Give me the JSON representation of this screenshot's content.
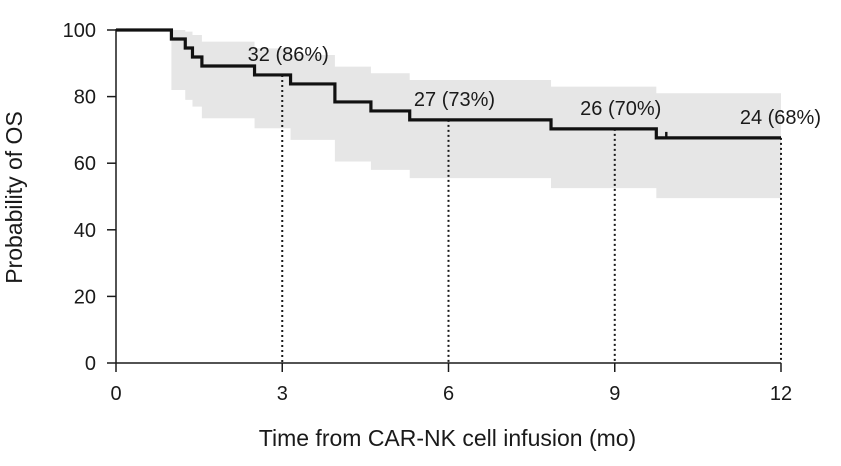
{
  "chart_data": {
    "type": "line",
    "title": "",
    "xlabel": "Time from CAR-NK cell infusion (mo)",
    "ylabel": "Probability of OS",
    "xlim": [
      0,
      12
    ],
    "ylim": [
      0,
      100
    ],
    "xticks": [
      0,
      3,
      6,
      9,
      12
    ],
    "yticks": [
      0,
      20,
      40,
      60,
      80,
      100
    ],
    "grid": false,
    "legend": "none",
    "survival": {
      "x": [
        0,
        1.0,
        1.25,
        1.38,
        1.55,
        2.5,
        3.15,
        3.95,
        4.6,
        5.3,
        7.85,
        9.75,
        12
      ],
      "y": [
        100,
        97.3,
        94.6,
        91.9,
        89.2,
        86.5,
        83.8,
        78.4,
        75.7,
        73.0,
        70.3,
        67.6,
        67.6
      ],
      "color": "#111111"
    },
    "ci_band": {
      "x": [
        0,
        1.0,
        1.25,
        1.38,
        1.55,
        2.5,
        3.15,
        3.95,
        4.6,
        5.3,
        7.85,
        9.75,
        12
      ],
      "upper": [
        100,
        100,
        99.5,
        98.5,
        96.5,
        94.5,
        92.5,
        89,
        87,
        85,
        83,
        81,
        81
      ],
      "lower": [
        100,
        82,
        79,
        77,
        73.5,
        70.5,
        67,
        60.5,
        58,
        55.5,
        52.5,
        49.5,
        49.5
      ],
      "color": "#e6e6e6"
    },
    "censor_marks": [
      {
        "x": 9.93,
        "y": 67.6
      }
    ],
    "landmarks": [
      {
        "x": 3,
        "y": 86.5,
        "label": "32 (86%)"
      },
      {
        "x": 6,
        "y": 73.0,
        "label": "27 (73%)"
      },
      {
        "x": 9,
        "y": 70.3,
        "label": "26 (70%)"
      },
      {
        "x": 12,
        "y": 67.6,
        "label": "24 (68%)"
      }
    ]
  }
}
